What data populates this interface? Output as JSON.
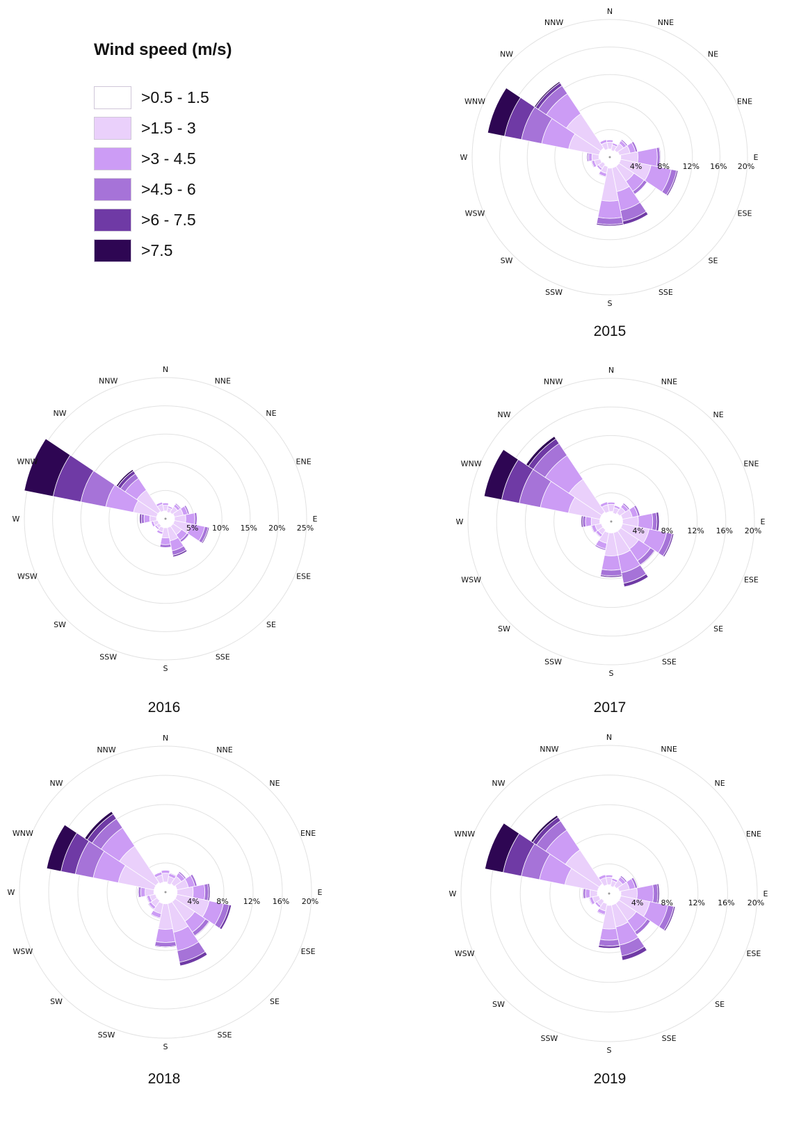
{
  "legend": {
    "title": "Wind speed (m/s)",
    "bins": [
      ">0.5 - 1.5",
      ">1.5 - 3",
      ">3 - 4.5",
      ">4.5 - 6",
      ">6 - 7.5",
      ">7.5"
    ],
    "colors": [
      "#ffffff",
      "#ead0fb",
      "#cc9cf5",
      "#a673d8",
      "#6f3aa5",
      "#2e0653"
    ]
  },
  "directions": [
    "N",
    "NNE",
    "NE",
    "ENE",
    "E",
    "ESE",
    "SE",
    "SSE",
    "S",
    "SSW",
    "SW",
    "WSW",
    "W",
    "WNW",
    "NW",
    "NNW"
  ],
  "chart_data": [
    {
      "type": "polar-bar",
      "year": "2015",
      "rmax": 20,
      "ticks": [
        "4%",
        "8%",
        "12%",
        "16%",
        "20%"
      ],
      "series_order": [
        ">0.5 - 1.5",
        ">1.5 - 3",
        ">3 - 4.5",
        ">4.5 - 6",
        ">6 - 7.5",
        ">7.5"
      ],
      "frequencies_percent": {
        "N": [
          1.2,
          1.0,
          0.3,
          0,
          0,
          0
        ],
        "NNE": [
          1.0,
          0.8,
          0.3,
          0,
          0,
          0
        ],
        "NE": [
          1.2,
          1.2,
          0.5,
          0.2,
          0,
          0
        ],
        "ENE": [
          1.4,
          1.6,
          0.8,
          0.3,
          0,
          0
        ],
        "E": [
          1.6,
          2.5,
          2.8,
          0.4,
          0.1,
          0
        ],
        "ESE": [
          1.6,
          4.5,
          3.0,
          0.8,
          0.2,
          0
        ],
        "SE": [
          1.6,
          2.6,
          1.8,
          0.5,
          0,
          0
        ],
        "SSE": [
          1.6,
          3.5,
          2.8,
          1.6,
          0.5,
          0
        ],
        "S": [
          1.6,
          4.8,
          2.5,
          0.9,
          0.2,
          0
        ],
        "SSW": [
          1.4,
          1.0,
          0.5,
          0.1,
          0,
          0
        ],
        "SW": [
          1.2,
          0.8,
          0.3,
          0,
          0,
          0
        ],
        "WSW": [
          1.4,
          0.9,
          0.4,
          0.1,
          0,
          0
        ],
        "W": [
          1.6,
          1.0,
          0.5,
          0.2,
          0.1,
          0
        ],
        "WNW": [
          1.6,
          4.5,
          4.0,
          3.0,
          2.5,
          2.5
        ],
        "NW": [
          1.6,
          6.0,
          3.5,
          1.4,
          0.5,
          0.2
        ],
        "NNW": [
          1.2,
          1.0,
          0.4,
          0,
          0,
          0
        ]
      }
    },
    {
      "type": "polar-bar",
      "year": "2016",
      "rmax": 25,
      "ticks": [
        "5%",
        "10%",
        "15%",
        "20%",
        "25%"
      ],
      "series_order": [
        ">0.5 - 1.5",
        ">1.5 - 3",
        ">3 - 4.5",
        ">4.5 - 6",
        ">6 - 7.5",
        ">7.5"
      ],
      "frequencies_percent": {
        "N": [
          1.4,
          1.0,
          0.4,
          0,
          0,
          0
        ],
        "NNE": [
          1.2,
          0.8,
          0.3,
          0,
          0,
          0
        ],
        "NE": [
          1.4,
          1.2,
          0.5,
          0.2,
          0,
          0
        ],
        "ENE": [
          1.6,
          1.6,
          0.8,
          0.3,
          0.1,
          0
        ],
        "E": [
          1.6,
          2.0,
          1.6,
          0.4,
          0.1,
          0
        ],
        "ESE": [
          1.6,
          3.0,
          2.5,
          0.6,
          0.2,
          0
        ],
        "SE": [
          1.6,
          1.8,
          1.2,
          0.4,
          0,
          0
        ],
        "SSE": [
          1.6,
          2.4,
          1.8,
          0.8,
          0.3,
          0
        ],
        "S": [
          1.6,
          1.8,
          1.2,
          0.5,
          0.1,
          0
        ],
        "SSW": [
          1.6,
          0.8,
          0.4,
          0.1,
          0,
          0
        ],
        "SW": [
          1.4,
          0.6,
          0.3,
          0,
          0,
          0
        ],
        "WSW": [
          1.4,
          0.8,
          0.4,
          0.1,
          0,
          0
        ],
        "W": [
          1.6,
          1.2,
          1.0,
          0.5,
          0.3,
          0
        ],
        "WNW": [
          1.6,
          4.2,
          5.0,
          4.5,
          5.0,
          5.2
        ],
        "NW": [
          1.6,
          4.5,
          2.5,
          1.0,
          0.6,
          0.3
        ],
        "NNW": [
          1.4,
          1.2,
          0.4,
          0,
          0,
          0
        ]
      }
    },
    {
      "type": "polar-bar",
      "year": "2017",
      "rmax": 20,
      "ticks": [
        "4%",
        "8%",
        "12%",
        "16%",
        "20%"
      ],
      "series_order": [
        ">0.5 - 1.5",
        ">1.5 - 3",
        ">3 - 4.5",
        ">4.5 - 6",
        ">6 - 7.5",
        ">7.5"
      ],
      "frequencies_percent": {
        "N": [
          1.4,
          1.0,
          0.3,
          0,
          0,
          0
        ],
        "NNE": [
          1.2,
          0.8,
          0.3,
          0,
          0,
          0
        ],
        "NE": [
          1.4,
          1.0,
          0.5,
          0.2,
          0,
          0
        ],
        "ENE": [
          1.6,
          1.4,
          0.8,
          0.3,
          0,
          0
        ],
        "E": [
          1.6,
          2.2,
          2.0,
          0.6,
          0.3,
          0
        ],
        "ESE": [
          1.6,
          3.8,
          2.5,
          0.8,
          0.2,
          0
        ],
        "SE": [
          1.6,
          3.0,
          2.0,
          0.7,
          0.1,
          0
        ],
        "SSE": [
          1.6,
          3.2,
          2.5,
          1.5,
          0.5,
          0
        ],
        "S": [
          1.6,
          3.2,
          2.0,
          0.8,
          0.2,
          0
        ],
        "SSW": [
          1.6,
          1.5,
          0.8,
          0.2,
          0,
          0
        ],
        "SW": [
          1.4,
          0.8,
          0.4,
          0.1,
          0,
          0
        ],
        "WSW": [
          1.4,
          0.9,
          0.5,
          0.1,
          0,
          0
        ],
        "W": [
          1.6,
          1.2,
          0.8,
          0.4,
          0.2,
          0
        ],
        "WNW": [
          1.6,
          4.5,
          4.0,
          3.0,
          2.5,
          2.5
        ],
        "NW": [
          1.6,
          5.5,
          4.0,
          2.0,
          0.8,
          0.4
        ],
        "NNW": [
          1.4,
          1.0,
          0.4,
          0,
          0,
          0
        ]
      }
    },
    {
      "type": "polar-bar",
      "year": "2018",
      "rmax": 20,
      "ticks": [
        "4%",
        "8%",
        "12%",
        "16%",
        "20%"
      ],
      "series_order": [
        ">0.5 - 1.5",
        ">1.5 - 3",
        ">3 - 4.5",
        ">4.5 - 6",
        ">6 - 7.5",
        ">7.5"
      ],
      "frequencies_percent": {
        "N": [
          1.4,
          1.2,
          0.4,
          0,
          0,
          0
        ],
        "NNE": [
          1.2,
          1.0,
          0.4,
          0.1,
          0,
          0
        ],
        "NE": [
          1.4,
          1.2,
          0.6,
          0.2,
          0,
          0
        ],
        "ENE": [
          1.6,
          1.6,
          0.9,
          0.3,
          0,
          0
        ],
        "E": [
          1.6,
          2.2,
          1.6,
          0.5,
          0.2,
          0
        ],
        "ESE": [
          1.6,
          4.5,
          2.0,
          0.8,
          0.3,
          0
        ],
        "SE": [
          1.6,
          3.2,
          1.8,
          0.6,
          0.1,
          0
        ],
        "SSE": [
          1.6,
          4.0,
          2.6,
          1.6,
          0.5,
          0
        ],
        "S": [
          1.6,
          3.5,
          1.8,
          0.6,
          0.1,
          0
        ],
        "SSW": [
          1.6,
          1.4,
          0.6,
          0.1,
          0,
          0
        ],
        "SW": [
          1.4,
          1.0,
          0.4,
          0.1,
          0,
          0
        ],
        "WSW": [
          1.4,
          0.8,
          0.4,
          0.1,
          0,
          0
        ],
        "W": [
          1.6,
          1.2,
          0.6,
          0.3,
          0.1,
          0
        ],
        "WNW": [
          1.6,
          5.0,
          3.5,
          2.5,
          2.0,
          2.0
        ],
        "NW": [
          1.6,
          6.0,
          3.0,
          1.5,
          0.8,
          0.4
        ],
        "NNW": [
          1.4,
          1.0,
          0.4,
          0,
          0,
          0
        ]
      }
    },
    {
      "type": "polar-bar",
      "year": "2019",
      "rmax": 20,
      "ticks": [
        "4%",
        "8%",
        "12%",
        "16%",
        "20%"
      ],
      "series_order": [
        ">0.5 - 1.5",
        ">1.5 - 3",
        ">3 - 4.5",
        ">4.5 - 6",
        ">6 - 7.5",
        ">7.5"
      ],
      "frequencies_percent": {
        "N": [
          1.2,
          1.0,
          0.3,
          0,
          0,
          0
        ],
        "NNE": [
          1.0,
          0.8,
          0.3,
          0,
          0,
          0
        ],
        "NE": [
          1.2,
          1.0,
          0.5,
          0.2,
          0,
          0
        ],
        "ENE": [
          1.4,
          1.4,
          0.8,
          0.3,
          0,
          0
        ],
        "E": [
          1.6,
          2.2,
          2.2,
          0.6,
          0.2,
          0
        ],
        "ESE": [
          1.6,
          4.0,
          2.5,
          0.8,
          0.2,
          0
        ],
        "SE": [
          1.6,
          2.8,
          1.8,
          0.5,
          0,
          0
        ],
        "SSE": [
          1.6,
          3.0,
          2.5,
          1.5,
          0.6,
          0
        ],
        "S": [
          1.6,
          3.2,
          1.5,
          0.8,
          0.3,
          0
        ],
        "SSW": [
          1.4,
          1.0,
          0.5,
          0.1,
          0,
          0
        ],
        "SW": [
          1.2,
          0.8,
          0.3,
          0,
          0,
          0
        ],
        "WSW": [
          1.4,
          0.9,
          0.4,
          0.1,
          0,
          0
        ],
        "W": [
          1.6,
          1.0,
          0.6,
          0.3,
          0.1,
          0
        ],
        "WNW": [
          1.6,
          4.5,
          3.5,
          2.5,
          2.5,
          2.5
        ],
        "NW": [
          1.6,
          5.5,
          3.2,
          1.5,
          0.6,
          0.3
        ],
        "NNW": [
          1.2,
          1.0,
          0.4,
          0,
          0,
          0
        ]
      }
    }
  ]
}
